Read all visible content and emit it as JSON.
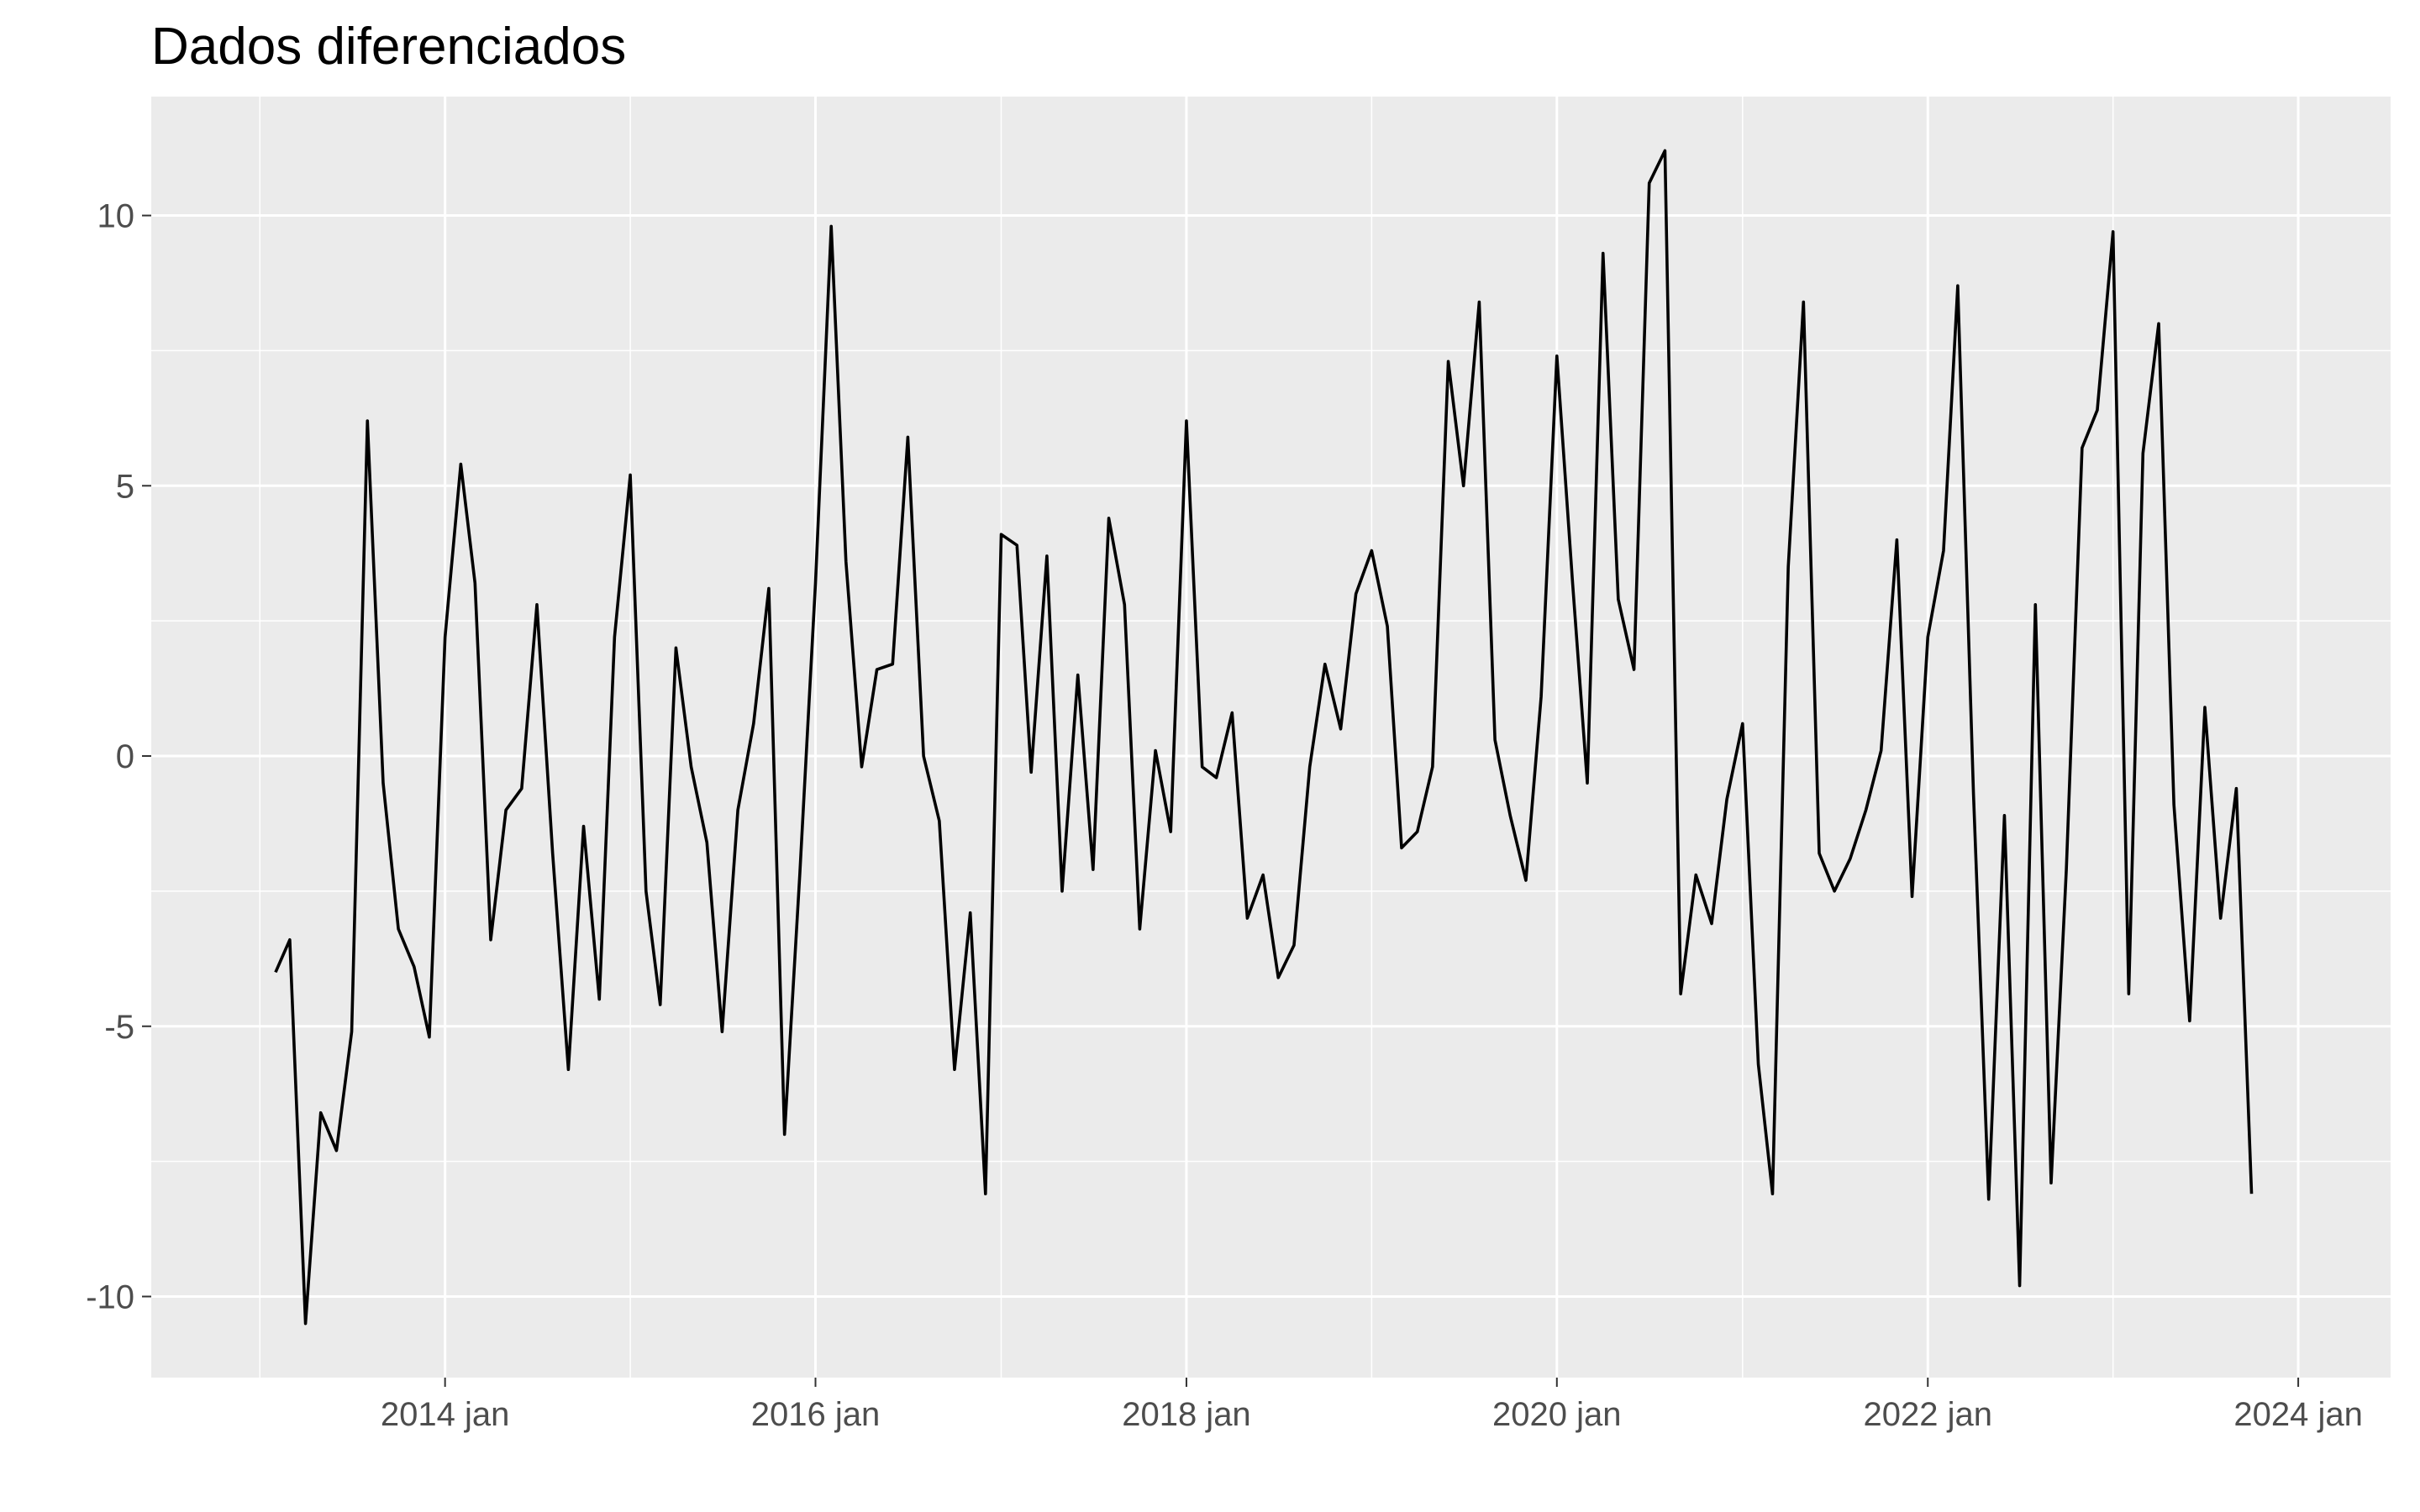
{
  "chart_data": {
    "type": "line",
    "title": "Dados diferenciados",
    "xlabel": "",
    "ylabel": "",
    "x_axis": {
      "type": "date",
      "range": [
        "2012-06-01",
        "2024-07-01"
      ],
      "ticks": [
        {
          "date": "2014-01-01",
          "label": "2014 jan"
        },
        {
          "date": "2016-01-01",
          "label": "2016 jan"
        },
        {
          "date": "2018-01-01",
          "label": "2018 jan"
        },
        {
          "date": "2020-01-01",
          "label": "2020 jan"
        },
        {
          "date": "2022-01-01",
          "label": "2022 jan"
        },
        {
          "date": "2024-01-01",
          "label": "2024 jan"
        }
      ],
      "minor_ticks": [
        "2013-01-01",
        "2015-01-01",
        "2017-01-01",
        "2019-01-01",
        "2021-01-01",
        "2023-01-01"
      ]
    },
    "y_axis": {
      "range": [
        -11.5,
        12.2
      ],
      "ticks": [
        {
          "value": -10,
          "label": "-10"
        },
        {
          "value": -5,
          "label": "-5"
        },
        {
          "value": 0,
          "label": "0"
        },
        {
          "value": 5,
          "label": "5"
        },
        {
          "value": 10,
          "label": "10"
        }
      ],
      "minor_ticks": [
        -7.5,
        -2.5,
        2.5,
        7.5
      ]
    },
    "grid": true,
    "background": "#ebebeb",
    "grid_color": "#ffffff",
    "line_color": "#000000",
    "series": [
      {
        "start": "2013-02",
        "values": [
          -4.0,
          -3.4,
          -10.5,
          -6.6,
          -7.3,
          -5.1,
          6.2,
          -0.5,
          -3.2,
          -3.9,
          -5.2,
          2.2,
          5.4,
          3.2,
          -3.4,
          -1.0,
          -0.6,
          2.8,
          -1.8,
          -5.8,
          -1.3,
          -4.5,
          2.2,
          5.2,
          -2.5,
          -4.6,
          2.0,
          -0.2,
          -1.6,
          -5.1,
          -1.0,
          0.6,
          3.1,
          -7.0,
          -2.2,
          3.2,
          9.8,
          3.6,
          -0.2,
          1.6,
          1.7,
          5.9,
          0.0,
          -1.2,
          -5.8,
          -2.9,
          -8.1,
          4.1,
          3.9,
          -0.3,
          3.7,
          -2.5,
          1.5,
          -2.1,
          4.4,
          2.8,
          -3.2,
          0.1,
          -1.4,
          6.2,
          -0.2,
          -0.4,
          0.8,
          -3.0,
          -2.2,
          -4.1,
          -3.5,
          -0.2,
          1.7,
          0.5,
          3.0,
          3.8,
          2.4,
          -1.7,
          -1.4,
          -0.2,
          7.3,
          5.0,
          8.4,
          0.3,
          -1.1,
          -2.3,
          1.1,
          7.4,
          3.2,
          -0.5,
          9.3,
          2.9,
          1.6,
          10.6,
          11.2,
          -4.4,
          -2.2,
          -3.1,
          -0.8,
          0.6,
          -5.7,
          -8.1,
          3.5,
          8.4,
          -1.8,
          -2.5,
          -1.9,
          -1.0,
          0.1,
          4.0,
          -2.6,
          2.2,
          3.8,
          8.7,
          -0.7,
          -8.2,
          -1.1,
          -9.8,
          2.8,
          -7.9,
          -2.1,
          5.7,
          6.4,
          9.7,
          -4.4,
          5.6,
          8.0,
          -0.9,
          -4.9,
          0.9,
          -3.0,
          -0.6,
          -8.1
        ]
      }
    ]
  }
}
